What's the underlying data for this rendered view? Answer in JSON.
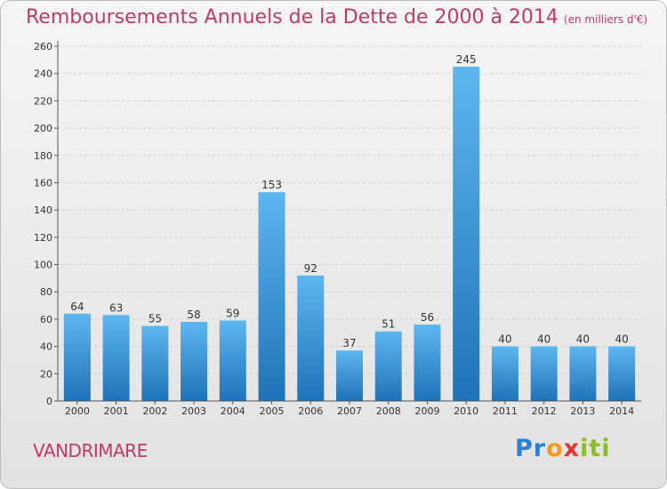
{
  "title": "Remboursements Annuels de la Dette de 2000 à 2014",
  "subtitle": "(en milliers d'€)",
  "location": "VANDRIMARE",
  "brand": {
    "parts": [
      "Pr",
      "o",
      "x",
      "iti"
    ],
    "logo_text": "Proxiti"
  },
  "colors": {
    "bar_top": "#5eb6ef",
    "bar_bottom": "#1e73b8",
    "title": "#c0396b"
  },
  "chart_data": {
    "type": "bar",
    "title": "Remboursements Annuels de la Dette de 2000 à 2014",
    "xlabel": "",
    "ylabel": "",
    "categories": [
      "2000",
      "2001",
      "2002",
      "2003",
      "2004",
      "2005",
      "2006",
      "2007",
      "2008",
      "2009",
      "2010",
      "2011",
      "2012",
      "2013",
      "2014"
    ],
    "values": [
      64,
      63,
      55,
      58,
      59,
      153,
      92,
      37,
      51,
      56,
      245,
      40,
      40,
      40,
      40
    ],
    "ylim": [
      0,
      260
    ],
    "yticks": [
      "0",
      "20",
      "40",
      "60",
      "80",
      "100",
      "120",
      "140",
      "160",
      "180",
      "200",
      "220",
      "240",
      "260"
    ]
  }
}
